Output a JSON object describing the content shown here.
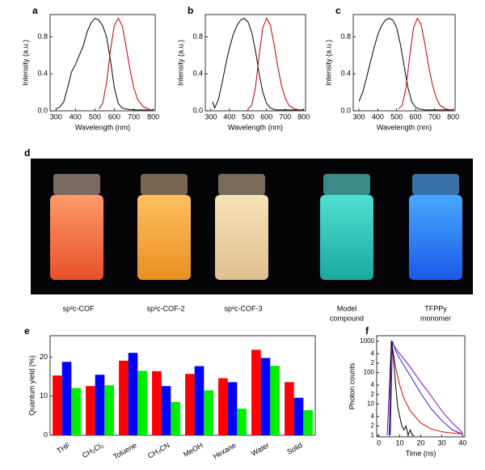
{
  "chart_data": [
    {
      "type": "line",
      "panel": "a",
      "xlabel": "Wavelength (nm)",
      "ylabel": "Intensity (a.u.)",
      "xlim": [
        270,
        810
      ],
      "xticks": [
        300,
        400,
        500,
        600,
        700,
        800
      ],
      "ylim": [
        0,
        1.04
      ],
      "yticks": [
        {
          "value": 0,
          "label": "0.0"
        },
        {
          "value": 0.4,
          "label": "0.4"
        },
        {
          "value": 0.8,
          "label": "0.8"
        }
      ],
      "series": [
        {
          "color": "#000000",
          "x": [
            300,
            320,
            340,
            360,
            380,
            400,
            420,
            440,
            460,
            480,
            500,
            520,
            540,
            560,
            580,
            600,
            620,
            640,
            660,
            700,
            750,
            800
          ],
          "values": [
            0.02,
            0.04,
            0.1,
            0.25,
            0.42,
            0.5,
            0.6,
            0.7,
            0.85,
            0.95,
            1.0,
            0.98,
            0.92,
            0.8,
            0.55,
            0.25,
            0.08,
            0.03,
            0.02,
            0.01,
            0.01,
            0.01
          ]
        },
        {
          "color": "#c00000",
          "x": [
            520,
            540,
            560,
            580,
            600,
            620,
            640,
            660,
            680,
            700,
            720,
            750,
            780
          ],
          "values": [
            0.02,
            0.08,
            0.3,
            0.65,
            0.92,
            1.0,
            0.92,
            0.7,
            0.45,
            0.25,
            0.12,
            0.04,
            0.02
          ]
        }
      ]
    },
    {
      "type": "line",
      "panel": "b",
      "xlabel": "Wavelength (nm)",
      "ylabel": "Intensity (a.u.)",
      "xlim": [
        270,
        810
      ],
      "xticks": [
        300,
        400,
        500,
        600,
        700,
        800
      ],
      "ylim": [
        0,
        1.04
      ],
      "yticks": [
        {
          "value": 0,
          "label": "0.0"
        },
        {
          "value": 0.4,
          "label": "0.4"
        },
        {
          "value": 0.8,
          "label": "0.8"
        }
      ],
      "series": [
        {
          "color": "#000000",
          "x": [
            310,
            320,
            340,
            360,
            380,
            400,
            420,
            440,
            460,
            480,
            500,
            520,
            540,
            560,
            580,
            600,
            620,
            650,
            700,
            750,
            800
          ],
          "values": [
            0.1,
            0.03,
            0.12,
            0.3,
            0.5,
            0.68,
            0.82,
            0.92,
            0.98,
            1.0,
            0.96,
            0.85,
            0.65,
            0.4,
            0.2,
            0.08,
            0.03,
            0.01,
            0.01,
            0.01,
            0.01
          ]
        },
        {
          "color": "#c00000",
          "x": [
            500,
            520,
            540,
            560,
            580,
            600,
            620,
            640,
            660,
            680,
            700,
            720,
            750,
            780
          ],
          "values": [
            0.02,
            0.06,
            0.25,
            0.6,
            0.9,
            1.0,
            0.93,
            0.72,
            0.48,
            0.28,
            0.14,
            0.06,
            0.02,
            0.01
          ]
        }
      ]
    },
    {
      "type": "line",
      "panel": "c",
      "xlabel": "Wavelength (nm)",
      "ylabel": "Intensity (a.u.)",
      "xlim": [
        270,
        810
      ],
      "xticks": [
        300,
        400,
        500,
        600,
        700,
        800
      ],
      "ylim": [
        0,
        1.04
      ],
      "yticks": [
        {
          "value": 0,
          "label": "0.0"
        },
        {
          "value": 0.4,
          "label": "0.4"
        },
        {
          "value": 0.8,
          "label": "0.8"
        }
      ],
      "series": [
        {
          "color": "#000000",
          "x": [
            300,
            320,
            340,
            360,
            380,
            400,
            420,
            440,
            460,
            480,
            500,
            520,
            540,
            560,
            580,
            600,
            620,
            650,
            700,
            750,
            800
          ],
          "values": [
            0.1,
            0.2,
            0.35,
            0.52,
            0.68,
            0.82,
            0.92,
            0.98,
            1.0,
            0.98,
            0.9,
            0.72,
            0.48,
            0.25,
            0.1,
            0.04,
            0.02,
            0.01,
            0.01,
            0.01,
            0.01
          ]
        },
        {
          "color": "#c00000",
          "x": [
            510,
            530,
            550,
            570,
            590,
            610,
            630,
            650,
            670,
            690,
            710,
            730,
            760,
            790
          ],
          "values": [
            0.02,
            0.06,
            0.25,
            0.6,
            0.9,
            1.0,
            0.93,
            0.72,
            0.48,
            0.28,
            0.14,
            0.06,
            0.02,
            0.01
          ]
        }
      ]
    },
    {
      "type": "bar",
      "panel": "e",
      "ylabel": "Quantum yield (%)",
      "categories": [
        "THF",
        "CH₂Cl₂",
        "Toluene",
        "CH₃CN",
        "MeOH",
        "Hexane",
        "Water",
        "Solid"
      ],
      "ylim": [
        0,
        25.5
      ],
      "yticks": [
        0,
        10,
        20
      ],
      "series": [
        {
          "color": "#ff0000",
          "values": [
            15.3,
            12.6,
            19.1,
            16.4,
            15.7,
            14.6,
            21.9,
            13.6
          ]
        },
        {
          "color": "#0000ff",
          "values": [
            18.8,
            15.5,
            21.1,
            12.6,
            17.7,
            13.6,
            19.8,
            9.6
          ]
        },
        {
          "color": "#00ee00",
          "values": [
            12.1,
            12.8,
            16.5,
            8.5,
            11.5,
            6.8,
            17.8,
            6.4
          ]
        }
      ]
    },
    {
      "type": "line",
      "panel": "f",
      "xlabel": "Time (ns)",
      "ylabel": "Photon counts",
      "yscale": "log",
      "xlim": [
        -1,
        41
      ],
      "xticks": [
        0,
        10,
        20,
        30,
        40
      ],
      "ylim": [
        0.9,
        1500
      ],
      "yticks": [
        1,
        2,
        4,
        10,
        {
          "value": 20,
          "label": "2"
        },
        {
          "value": 40,
          "label": "4"
        },
        100,
        {
          "value": 200,
          "label": "2"
        },
        {
          "value": 400,
          "label": "4"
        },
        1000
      ],
      "series": [
        {
          "color": "#7a00c8",
          "x": [
            4,
            6,
            8,
            10,
            15,
            20,
            25,
            30,
            35,
            40
          ],
          "values": [
            1,
            1000,
            600,
            400,
            150,
            50,
            18,
            6,
            2.5,
            1.2
          ]
        },
        {
          "color": "#2020e0",
          "x": [
            5.5,
            6.5,
            8,
            10,
            15,
            20,
            25,
            30,
            35,
            40
          ],
          "values": [
            1,
            1000,
            500,
            280,
            80,
            22,
            7,
            3,
            1.5,
            1.1
          ]
        },
        {
          "color": "#e00000",
          "x": [
            5,
            6,
            7,
            8,
            10,
            12,
            15,
            20,
            25,
            30,
            35,
            40
          ],
          "values": [
            1,
            1000,
            400,
            150,
            40,
            15,
            6,
            2.5,
            1.6,
            1.3,
            1.2,
            1.1
          ]
        },
        {
          "color": "#000000",
          "x": [
            5,
            6,
            7,
            8,
            9,
            10,
            11,
            12,
            13,
            14,
            15,
            16,
            17
          ],
          "values": [
            1,
            1000,
            300,
            40,
            8,
            4,
            2,
            1.5,
            2,
            1,
            1.5,
            1,
            1
          ]
        }
      ]
    }
  ],
  "photo": {
    "panel": "d",
    "labels": [
      [
        "sp²c-COF"
      ],
      [
        "sp²c-COF-2"
      ],
      [
        "sp²c-COF-3"
      ],
      [
        "Model",
        "compound"
      ],
      [
        "TFPPy",
        "monomer"
      ]
    ]
  }
}
